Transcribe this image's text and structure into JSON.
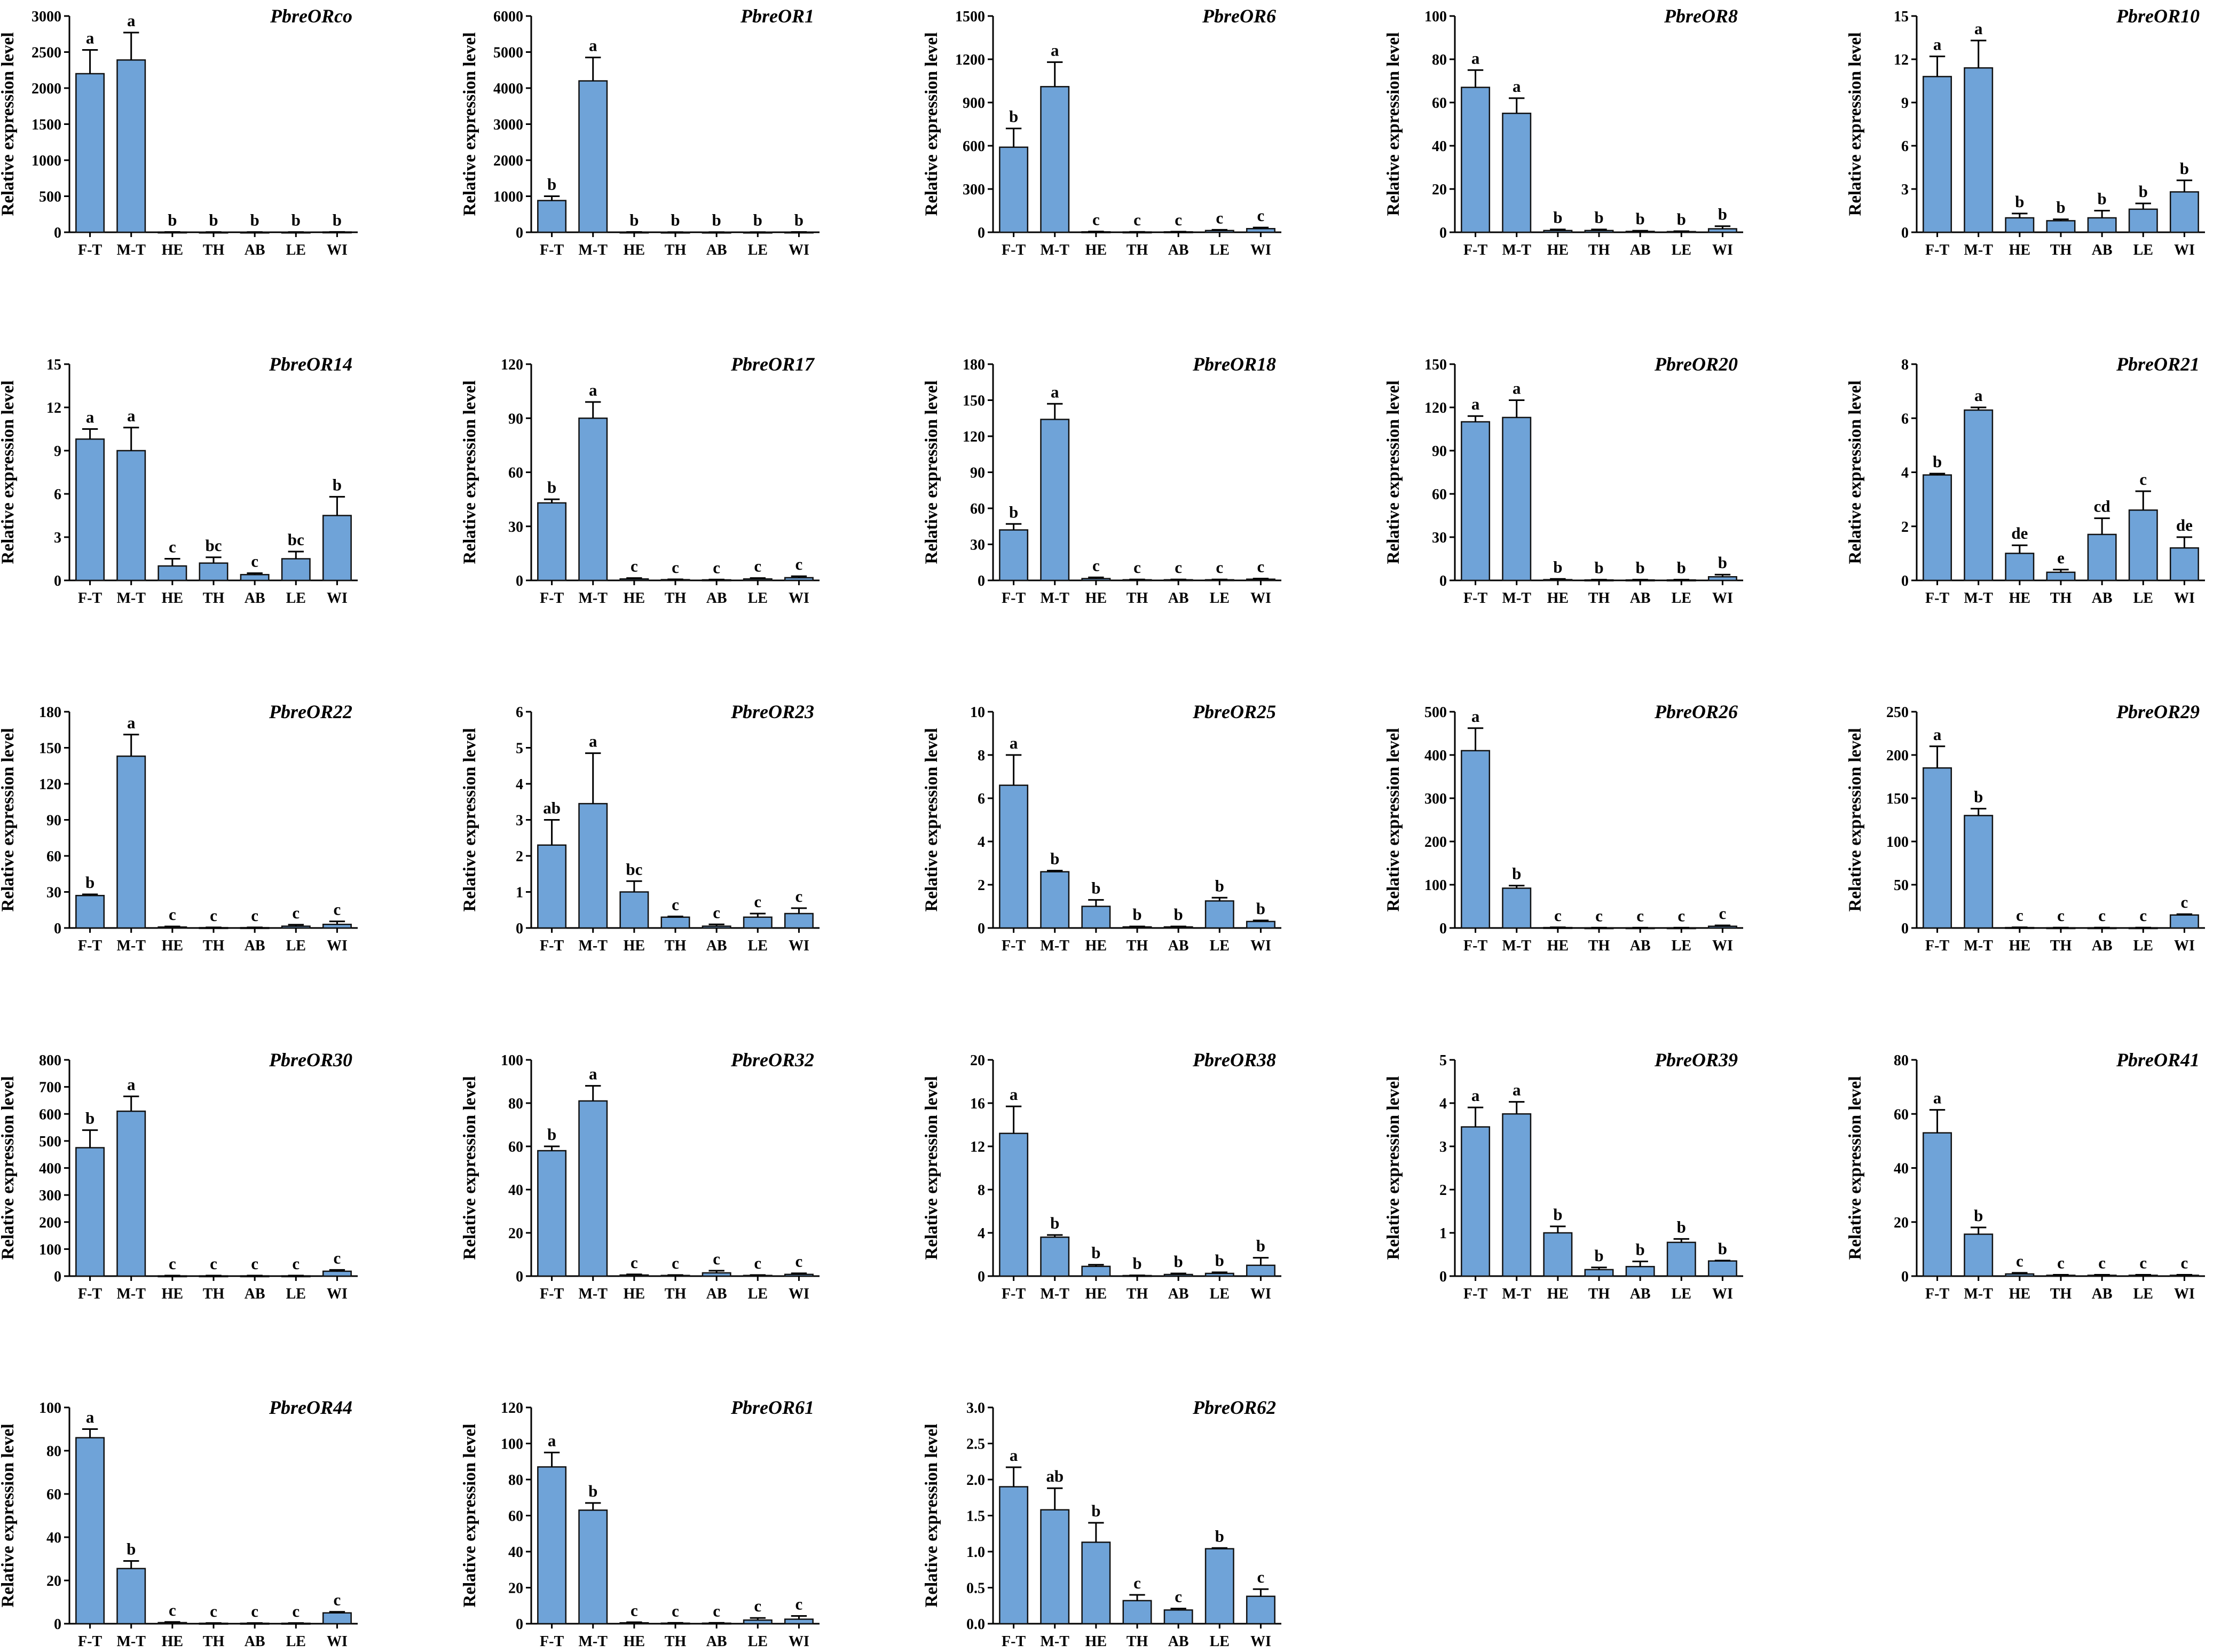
{
  "figure": {
    "bar_color": "#6fa3d8",
    "bar_edge_color": "#111111",
    "axis_color": "#000000"
  },
  "chart_data": [
    {
      "type": "bar",
      "title": "PbreORco",
      "ylabel": "Relative expression level",
      "categories": [
        "F-T",
        "M-T",
        "HE",
        "TH",
        "AB",
        "LE",
        "WI"
      ],
      "values": [
        2200,
        2390,
        3,
        2,
        2,
        2,
        4
      ],
      "errors": [
        330,
        380,
        1,
        1,
        1,
        1,
        1
      ],
      "letters": [
        "a",
        "a",
        "b",
        "b",
        "b",
        "b",
        "b"
      ],
      "ylim": [
        0,
        3000
      ],
      "yticks": [
        0,
        500,
        1000,
        1500,
        2000,
        2500,
        3000
      ],
      "ytick_labels": [
        "0",
        "500",
        "1000",
        "1500",
        "2000",
        "2500",
        "3000"
      ]
    },
    {
      "type": "bar",
      "title": "PbreOR1",
      "ylabel": "Relative expression level",
      "categories": [
        "F-T",
        "M-T",
        "HE",
        "TH",
        "AB",
        "LE",
        "WI"
      ],
      "values": [
        880,
        4200,
        5,
        3,
        3,
        3,
        5
      ],
      "errors": [
        120,
        650,
        2,
        1,
        1,
        1,
        2
      ],
      "letters": [
        "b",
        "a",
        "b",
        "b",
        "b",
        "b",
        "b"
      ],
      "ylim": [
        0,
        6000
      ],
      "yticks": [
        0,
        1000,
        2000,
        3000,
        4000,
        5000,
        6000
      ],
      "ytick_labels": [
        "0",
        "1000",
        "2000",
        "3000",
        "4000",
        "5000",
        "6000"
      ]
    },
    {
      "type": "bar",
      "title": "PbreOR6",
      "ylabel": "Relative expression level",
      "categories": [
        "F-T",
        "M-T",
        "HE",
        "TH",
        "AB",
        "LE",
        "WI"
      ],
      "values": [
        590,
        1010,
        3,
        2,
        3,
        12,
        25
      ],
      "errors": [
        130,
        170,
        2,
        1,
        1,
        5,
        8
      ],
      "letters": [
        "b",
        "a",
        "c",
        "c",
        "c",
        "c",
        "c"
      ],
      "ylim": [
        0,
        1500
      ],
      "yticks": [
        0,
        300,
        600,
        900,
        1200,
        1500
      ],
      "ytick_labels": [
        "0",
        "300",
        "600",
        "900",
        "1200",
        "1500"
      ]
    },
    {
      "type": "bar",
      "title": "PbreOR8",
      "ylabel": "Relative expression level",
      "categories": [
        "F-T",
        "M-T",
        "HE",
        "TH",
        "AB",
        "LE",
        "WI"
      ],
      "values": [
        67,
        55,
        0.8,
        0.8,
        0.4,
        0.3,
        1.6
      ],
      "errors": [
        8,
        7,
        0.5,
        0.5,
        0.3,
        0.2,
        1.2
      ],
      "letters": [
        "a",
        "a",
        "b",
        "b",
        "b",
        "b",
        "b"
      ],
      "ylim": [
        0,
        100
      ],
      "yticks": [
        0,
        20,
        40,
        60,
        80,
        100
      ],
      "ytick_labels": [
        "0",
        "20",
        "40",
        "60",
        "80",
        "100"
      ]
    },
    {
      "type": "bar",
      "title": "PbreOR10",
      "ylabel": "Relative expression level",
      "categories": [
        "F-T",
        "M-T",
        "HE",
        "TH",
        "AB",
        "LE",
        "WI"
      ],
      "values": [
        10.8,
        11.4,
        1.0,
        0.8,
        1.0,
        1.6,
        2.8
      ],
      "errors": [
        1.4,
        1.9,
        0.3,
        0.1,
        0.5,
        0.4,
        0.8
      ],
      "letters": [
        "a",
        "a",
        "b",
        "b",
        "b",
        "b",
        "b"
      ],
      "ylim": [
        0,
        15
      ],
      "yticks": [
        0,
        3,
        6,
        9,
        12,
        15
      ],
      "ytick_labels": [
        "0",
        "3",
        "6",
        "9",
        "12",
        "15"
      ]
    },
    {
      "type": "bar",
      "title": "PbreOR14",
      "ylabel": "Relative expression level",
      "categories": [
        "F-T",
        "M-T",
        "HE",
        "TH",
        "AB",
        "LE",
        "WI"
      ],
      "values": [
        9.8,
        9.0,
        1.0,
        1.2,
        0.4,
        1.5,
        4.5
      ],
      "errors": [
        0.7,
        1.6,
        0.5,
        0.4,
        0.1,
        0.5,
        1.3
      ],
      "letters": [
        "a",
        "a",
        "c",
        "bc",
        "c",
        "bc",
        "b"
      ],
      "ylim": [
        0,
        15
      ],
      "yticks": [
        0,
        3,
        6,
        9,
        12,
        15
      ],
      "ytick_labels": [
        "0",
        "3",
        "6",
        "9",
        "12",
        "15"
      ]
    },
    {
      "type": "bar",
      "title": "PbreOR17",
      "ylabel": "Relative expression level",
      "categories": [
        "F-T",
        "M-T",
        "HE",
        "TH",
        "AB",
        "LE",
        "WI"
      ],
      "values": [
        43,
        90,
        0.8,
        0.4,
        0.3,
        0.8,
        1.5
      ],
      "errors": [
        2,
        9,
        0.5,
        0.2,
        0.2,
        0.5,
        0.8
      ],
      "letters": [
        "b",
        "a",
        "c",
        "c",
        "c",
        "c",
        "c"
      ],
      "ylim": [
        0,
        120
      ],
      "yticks": [
        0,
        30,
        60,
        90,
        120
      ],
      "ytick_labels": [
        "0",
        "30",
        "60",
        "90",
        "120"
      ]
    },
    {
      "type": "bar",
      "title": "PbreOR18",
      "ylabel": "Relative expression level",
      "categories": [
        "F-T",
        "M-T",
        "HE",
        "TH",
        "AB",
        "LE",
        "WI"
      ],
      "values": [
        42,
        134,
        1.5,
        0.5,
        0.5,
        0.5,
        1.0
      ],
      "errors": [
        5,
        13,
        1,
        0.3,
        0.3,
        0.3,
        0.5
      ],
      "letters": [
        "b",
        "a",
        "c",
        "c",
        "c",
        "c",
        "c"
      ],
      "ylim": [
        0,
        180
      ],
      "yticks": [
        0,
        30,
        60,
        90,
        120,
        150,
        180
      ],
      "ytick_labels": [
        "0",
        "30",
        "60",
        "90",
        "120",
        "150",
        "180"
      ]
    },
    {
      "type": "bar",
      "title": "PbreOR20",
      "ylabel": "Relative expression level",
      "categories": [
        "F-T",
        "M-T",
        "HE",
        "TH",
        "AB",
        "LE",
        "WI"
      ],
      "values": [
        110,
        113,
        0.5,
        0.3,
        0.3,
        0.3,
        2.5
      ],
      "errors": [
        4,
        12,
        0.5,
        0.2,
        0.2,
        0.2,
        1.5
      ],
      "letters": [
        "a",
        "a",
        "b",
        "b",
        "b",
        "b",
        "b"
      ],
      "ylim": [
        0,
        150
      ],
      "yticks": [
        0,
        30,
        60,
        90,
        120,
        150
      ],
      "ytick_labels": [
        "0",
        "30",
        "60",
        "90",
        "120",
        "150"
      ]
    },
    {
      "type": "bar",
      "title": "PbreOR21",
      "ylabel": "Relative expression level",
      "categories": [
        "F-T",
        "M-T",
        "HE",
        "TH",
        "AB",
        "LE",
        "WI"
      ],
      "values": [
        3.9,
        6.3,
        1.0,
        0.3,
        1.7,
        2.6,
        1.2
      ],
      "errors": [
        0.05,
        0.1,
        0.3,
        0.1,
        0.6,
        0.7,
        0.4
      ],
      "letters": [
        "b",
        "a",
        "de",
        "e",
        "cd",
        "c",
        "de"
      ],
      "ylim": [
        0,
        8
      ],
      "yticks": [
        0,
        2,
        4,
        6,
        8
      ],
      "ytick_labels": [
        "0",
        "2",
        "4",
        "6",
        "8"
      ]
    },
    {
      "type": "bar",
      "title": "PbreOR22",
      "ylabel": "Relative expression level",
      "categories": [
        "F-T",
        "M-T",
        "HE",
        "TH",
        "AB",
        "LE",
        "WI"
      ],
      "values": [
        27,
        143,
        0.8,
        0.3,
        0.3,
        1.5,
        3.0
      ],
      "errors": [
        1,
        18,
        0.5,
        0.2,
        0.2,
        1.2,
        2.5
      ],
      "letters": [
        "b",
        "a",
        "c",
        "c",
        "c",
        "c",
        "c"
      ],
      "ylim": [
        0,
        180
      ],
      "yticks": [
        0,
        30,
        60,
        90,
        120,
        150,
        180
      ],
      "ytick_labels": [
        "0",
        "30",
        "60",
        "90",
        "120",
        "150",
        "180"
      ]
    },
    {
      "type": "bar",
      "title": "PbreOR23",
      "ylabel": "Relative expression level",
      "categories": [
        "F-T",
        "M-T",
        "HE",
        "TH",
        "AB",
        "LE",
        "WI"
      ],
      "values": [
        2.3,
        3.45,
        1.0,
        0.3,
        0.05,
        0.3,
        0.4
      ],
      "errors": [
        0.7,
        1.4,
        0.3,
        0.02,
        0.05,
        0.1,
        0.15
      ],
      "letters": [
        "ab",
        "a",
        "bc",
        "c",
        "c",
        "c",
        "c"
      ],
      "ylim": [
        0,
        6
      ],
      "yticks": [
        0,
        1,
        2,
        3,
        4,
        5,
        6
      ],
      "ytick_labels": [
        "0",
        "1",
        "2",
        "3",
        "4",
        "5",
        "6"
      ]
    },
    {
      "type": "bar",
      "title": "PbreOR25",
      "ylabel": "Relative expression level",
      "categories": [
        "F-T",
        "M-T",
        "HE",
        "TH",
        "AB",
        "LE",
        "WI"
      ],
      "values": [
        6.6,
        2.6,
        1.0,
        0.05,
        0.05,
        1.25,
        0.3
      ],
      "errors": [
        1.4,
        0.05,
        0.3,
        0.02,
        0.02,
        0.15,
        0.05
      ],
      "letters": [
        "a",
        "b",
        "b",
        "b",
        "b",
        "b",
        "b"
      ],
      "ylim": [
        0,
        10
      ],
      "yticks": [
        0,
        2,
        4,
        6,
        8,
        10
      ],
      "ytick_labels": [
        "0",
        "2",
        "4",
        "6",
        "8",
        "10"
      ]
    },
    {
      "type": "bar",
      "title": "PbreOR26",
      "ylabel": "Relative expression level",
      "categories": [
        "F-T",
        "M-T",
        "HE",
        "TH",
        "AB",
        "LE",
        "WI"
      ],
      "values": [
        410,
        92,
        1,
        0.5,
        0.5,
        0.5,
        4
      ],
      "errors": [
        52,
        6,
        0.5,
        0.3,
        0.3,
        0.3,
        2
      ],
      "letters": [
        "a",
        "b",
        "c",
        "c",
        "c",
        "c",
        "c"
      ],
      "ylim": [
        0,
        500
      ],
      "yticks": [
        0,
        100,
        200,
        300,
        400,
        500
      ],
      "ytick_labels": [
        "0",
        "100",
        "200",
        "300",
        "400",
        "500"
      ]
    },
    {
      "type": "bar",
      "title": "PbreOR29",
      "ylabel": "Relative expression level",
      "categories": [
        "F-T",
        "M-T",
        "HE",
        "TH",
        "AB",
        "LE",
        "WI"
      ],
      "values": [
        185,
        130,
        0.5,
        0.3,
        0.3,
        0.3,
        15
      ],
      "errors": [
        25,
        8,
        0.3,
        0.2,
        0.2,
        0.2,
        1
      ],
      "letters": [
        "a",
        "b",
        "c",
        "c",
        "c",
        "c",
        "c"
      ],
      "ylim": [
        0,
        250
      ],
      "yticks": [
        0,
        50,
        100,
        150,
        200,
        250
      ],
      "ytick_labels": [
        "0",
        "50",
        "100",
        "150",
        "200",
        "250"
      ]
    },
    {
      "type": "bar",
      "title": "PbreOR30",
      "ylabel": "Relative expression level",
      "categories": [
        "F-T",
        "M-T",
        "HE",
        "TH",
        "AB",
        "LE",
        "WI"
      ],
      "values": [
        475,
        610,
        1,
        1,
        1,
        1,
        18
      ],
      "errors": [
        65,
        55,
        1,
        1,
        1,
        1,
        5
      ],
      "letters": [
        "b",
        "a",
        "c",
        "c",
        "c",
        "c",
        "c"
      ],
      "ylim": [
        0,
        800
      ],
      "yticks": [
        0,
        100,
        200,
        300,
        400,
        500,
        600,
        700,
        800
      ],
      "ytick_labels": [
        "0",
        "100",
        "200",
        "300",
        "400",
        "500",
        "600",
        "700",
        "800"
      ]
    },
    {
      "type": "bar",
      "title": "PbreOR32",
      "ylabel": "Relative expression level",
      "categories": [
        "F-T",
        "M-T",
        "HE",
        "TH",
        "AB",
        "LE",
        "WI"
      ],
      "values": [
        58,
        81,
        0.5,
        0.3,
        1.5,
        0.3,
        0.8
      ],
      "errors": [
        2,
        7,
        0.3,
        0.2,
        1.0,
        0.2,
        0.5
      ],
      "letters": [
        "b",
        "a",
        "c",
        "c",
        "c",
        "c",
        "c"
      ],
      "ylim": [
        0,
        100
      ],
      "yticks": [
        0,
        20,
        40,
        60,
        80,
        100
      ],
      "ytick_labels": [
        "0",
        "20",
        "40",
        "60",
        "80",
        "100"
      ]
    },
    {
      "type": "bar",
      "title": "PbreOR38",
      "ylabel": "Relative expression level",
      "categories": [
        "F-T",
        "M-T",
        "HE",
        "TH",
        "AB",
        "LE",
        "WI"
      ],
      "values": [
        13.2,
        3.6,
        0.9,
        0.05,
        0.15,
        0.25,
        1.0
      ],
      "errors": [
        2.5,
        0.2,
        0.15,
        0.02,
        0.1,
        0.1,
        0.7
      ],
      "letters": [
        "a",
        "b",
        "b",
        "b",
        "b",
        "b",
        "b"
      ],
      "ylim": [
        0,
        20
      ],
      "yticks": [
        0,
        4,
        8,
        12,
        16,
        20
      ],
      "ytick_labels": [
        "0",
        "4",
        "8",
        "12",
        "16",
        "20"
      ]
    },
    {
      "type": "bar",
      "title": "PbreOR39",
      "ylabel": "Relative expression level",
      "categories": [
        "F-T",
        "M-T",
        "HE",
        "TH",
        "AB",
        "LE",
        "WI"
      ],
      "values": [
        3.45,
        3.75,
        1.0,
        0.15,
        0.22,
        0.78,
        0.35
      ],
      "errors": [
        0.45,
        0.28,
        0.15,
        0.05,
        0.12,
        0.08,
        0.01
      ],
      "letters": [
        "a",
        "a",
        "b",
        "b",
        "b",
        "b",
        "b"
      ],
      "ylim": [
        0,
        5
      ],
      "yticks": [
        0,
        1,
        2,
        3,
        4,
        5
      ],
      "ytick_labels": [
        "0",
        "1",
        "2",
        "3",
        "4",
        "5"
      ]
    },
    {
      "type": "bar",
      "title": "PbreOR41",
      "ylabel": "Relative expression level",
      "categories": [
        "F-T",
        "M-T",
        "HE",
        "TH",
        "AB",
        "LE",
        "WI"
      ],
      "values": [
        53,
        15.5,
        0.8,
        0.3,
        0.3,
        0.3,
        0.3
      ],
      "errors": [
        8.5,
        2.5,
        0.4,
        0.2,
        0.2,
        0.2,
        0.2
      ],
      "letters": [
        "a",
        "b",
        "c",
        "c",
        "c",
        "c",
        "c"
      ],
      "ylim": [
        0,
        80
      ],
      "yticks": [
        0,
        20,
        40,
        60,
        80
      ],
      "ytick_labels": [
        "0",
        "20",
        "40",
        "60",
        "80"
      ]
    },
    {
      "type": "bar",
      "title": "PbreOR44",
      "ylabel": "Relative expression level",
      "categories": [
        "F-T",
        "M-T",
        "HE",
        "TH",
        "AB",
        "LE",
        "WI"
      ],
      "values": [
        86,
        25.5,
        0.5,
        0.2,
        0.2,
        0.2,
        5.0
      ],
      "errors": [
        4,
        3.5,
        0.3,
        0.1,
        0.1,
        0.1,
        0.5
      ],
      "letters": [
        "a",
        "b",
        "c",
        "c",
        "c",
        "c",
        "c"
      ],
      "ylim": [
        0,
        100
      ],
      "yticks": [
        0,
        20,
        40,
        60,
        80,
        100
      ],
      "ytick_labels": [
        "0",
        "20",
        "40",
        "60",
        "80",
        "100"
      ]
    },
    {
      "type": "bar",
      "title": "PbreOR61",
      "ylabel": "Relative expression level",
      "categories": [
        "F-T",
        "M-T",
        "HE",
        "TH",
        "AB",
        "LE",
        "WI"
      ],
      "values": [
        87,
        63,
        0.5,
        0.3,
        0.3,
        2.0,
        2.5
      ],
      "errors": [
        8,
        4,
        0.3,
        0.2,
        0.2,
        1.2,
        1.8
      ],
      "letters": [
        "a",
        "b",
        "c",
        "c",
        "c",
        "c",
        "c"
      ],
      "ylim": [
        0,
        120
      ],
      "yticks": [
        0,
        20,
        40,
        60,
        80,
        100,
        120
      ],
      "ytick_labels": [
        "0",
        "20",
        "40",
        "60",
        "80",
        "100",
        "120"
      ]
    },
    {
      "type": "bar",
      "title": "PbreOR62",
      "ylabel": "Relative expression level",
      "categories": [
        "F-T",
        "M-T",
        "HE",
        "TH",
        "AB",
        "LE",
        "WI"
      ],
      "values": [
        1.9,
        1.58,
        1.13,
        0.32,
        0.19,
        1.04,
        0.38
      ],
      "errors": [
        0.27,
        0.3,
        0.27,
        0.08,
        0.02,
        0.01,
        0.1
      ],
      "letters": [
        "a",
        "ab",
        "b",
        "c",
        "c",
        "b",
        "c"
      ],
      "ylim": [
        0,
        3
      ],
      "yticks": [
        0,
        0.5,
        1,
        1.5,
        2,
        2.5,
        3
      ],
      "ytick_labels": [
        "0.0",
        "0.5",
        "1.0",
        "1.5",
        "2.0",
        "2.5",
        "3.0"
      ]
    }
  ]
}
